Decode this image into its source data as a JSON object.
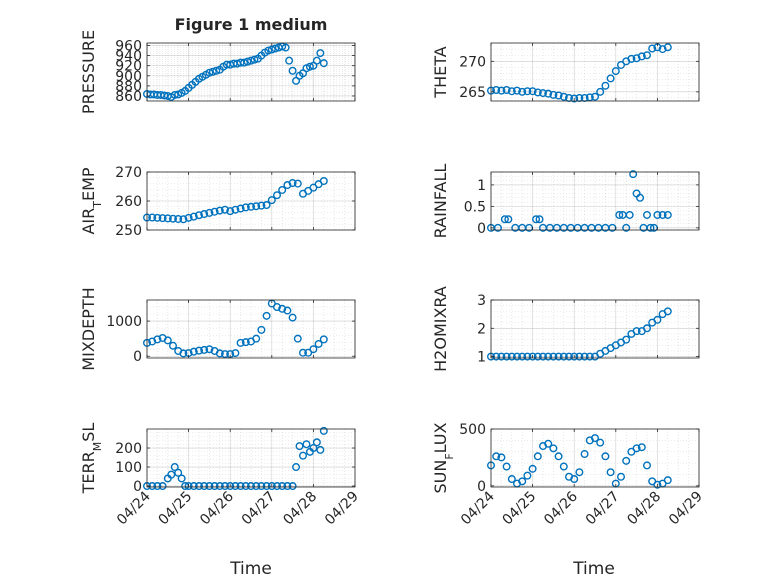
{
  "figure_title": "Figure 1 medium",
  "xlabel": "Time",
  "colors": {
    "marker": "#0072BD",
    "axis": "#262626",
    "grid": "#b0b0b0"
  },
  "chart_data": [
    {
      "type": "scatter",
      "ylabel": "PRESSURE",
      "xlim": [
        "04/24",
        "04/29"
      ],
      "ylim": [
        850,
        965
      ],
      "yticks": [
        "860",
        "880",
        "900",
        "920",
        "940",
        "960"
      ],
      "xticks": [
        "04/24",
        "04/25",
        "04/26",
        "04/27",
        "04/28",
        "04/29"
      ],
      "grid": true,
      "x": [
        "04/24 00:00",
        "04/24 02:00",
        "04/24 04:00",
        "04/24 06:00",
        "04/24 08:00",
        "04/24 10:00",
        "04/24 12:00",
        "04/24 14:00",
        "04/24 16:00",
        "04/24 18:00",
        "04/24 20:00",
        "04/24 22:00",
        "04/25 00:00",
        "04/25 02:00",
        "04/25 04:00",
        "04/25 06:00",
        "04/25 08:00",
        "04/25 10:00",
        "04/25 12:00",
        "04/25 14:00",
        "04/25 16:00",
        "04/25 18:00",
        "04/25 20:00",
        "04/25 22:00",
        "04/26 00:00",
        "04/26 02:00",
        "04/26 04:00",
        "04/26 06:00",
        "04/26 08:00",
        "04/26 10:00",
        "04/26 12:00",
        "04/26 14:00",
        "04/26 16:00",
        "04/26 18:00",
        "04/26 20:00",
        "04/26 22:00",
        "04/27 00:00",
        "04/27 02:00",
        "04/27 04:00",
        "04/27 06:00",
        "04/27 08:00",
        "04/27 10:00",
        "04/27 12:00",
        "04/27 14:00",
        "04/27 16:00",
        "04/27 18:00",
        "04/27 20:00",
        "04/27 22:00",
        "04/28 00:00",
        "04/28 02:00",
        "04/28 04:00",
        "04/28 06:00"
      ],
      "y": [
        864,
        863,
        863,
        862,
        862,
        861,
        860,
        858,
        862,
        863,
        866,
        870,
        876,
        882,
        888,
        894,
        898,
        902,
        906,
        908,
        910,
        912,
        918,
        922,
        922,
        924,
        924,
        926,
        926,
        928,
        930,
        932,
        934,
        940,
        946,
        950,
        952,
        954,
        956,
        958,
        956,
        930,
        910,
        890,
        900,
        905,
        915,
        918,
        920,
        930,
        945,
        925
      ]
    },
    {
      "type": "scatter",
      "ylabel": "THETA",
      "xlim": [
        "04/24",
        "04/29"
      ],
      "ylim": [
        263.5,
        273
      ],
      "yticks": [
        "265",
        "270"
      ],
      "xticks": [
        "04/24",
        "04/25",
        "04/26",
        "04/27",
        "04/28",
        "04/29"
      ],
      "grid": true,
      "x": [
        "04/24 00:00",
        "04/24 03:00",
        "04/24 06:00",
        "04/24 09:00",
        "04/24 12:00",
        "04/24 15:00",
        "04/24 18:00",
        "04/24 21:00",
        "04/25 00:00",
        "04/25 03:00",
        "04/25 06:00",
        "04/25 09:00",
        "04/25 12:00",
        "04/25 15:00",
        "04/25 18:00",
        "04/25 21:00",
        "04/26 00:00",
        "04/26 03:00",
        "04/26 06:00",
        "04/26 09:00",
        "04/26 12:00",
        "04/26 15:00",
        "04/26 18:00",
        "04/26 21:00",
        "04/27 00:00",
        "04/27 03:00",
        "04/27 06:00",
        "04/27 09:00",
        "04/27 12:00",
        "04/27 15:00",
        "04/27 18:00",
        "04/27 21:00",
        "04/28 00:00",
        "04/28 03:00",
        "04/28 06:00"
      ],
      "y": [
        265.2,
        265.3,
        265.2,
        265.3,
        265.1,
        265.2,
        265.0,
        265.1,
        265.1,
        264.9,
        264.8,
        264.7,
        264.5,
        264.4,
        264.2,
        264.0,
        263.9,
        264.0,
        264.0,
        264.1,
        264.2,
        265.0,
        266.0,
        267.2,
        268.4,
        269.4,
        270.0,
        270.4,
        270.5,
        270.8,
        271.0,
        272.1,
        272.3,
        272.0,
        272.3
      ]
    },
    {
      "type": "scatter",
      "ylabel": "AIR_TEMP",
      "xlim": [
        "04/24",
        "04/29"
      ],
      "ylim": [
        250,
        270
      ],
      "yticks": [
        "250",
        "260",
        "270"
      ],
      "xticks": [
        "04/24",
        "04/25",
        "04/26",
        "04/27",
        "04/28",
        "04/29"
      ],
      "grid": true,
      "x": [
        "04/24 00:00",
        "04/24 03:00",
        "04/24 06:00",
        "04/24 09:00",
        "04/24 12:00",
        "04/24 15:00",
        "04/24 18:00",
        "04/24 21:00",
        "04/25 00:00",
        "04/25 03:00",
        "04/25 06:00",
        "04/25 09:00",
        "04/25 12:00",
        "04/25 15:00",
        "04/25 18:00",
        "04/25 21:00",
        "04/26 00:00",
        "04/26 03:00",
        "04/26 06:00",
        "04/26 09:00",
        "04/26 12:00",
        "04/26 15:00",
        "04/26 18:00",
        "04/26 21:00",
        "04/27 00:00",
        "04/27 03:00",
        "04/27 06:00",
        "04/27 09:00",
        "04/27 12:00",
        "04/27 15:00",
        "04/27 18:00",
        "04/27 21:00",
        "04/28 00:00",
        "04/28 03:00",
        "04/28 06:00"
      ],
      "y": [
        254.3,
        254.3,
        254.2,
        254.1,
        254.0,
        253.9,
        253.8,
        253.7,
        254.2,
        254.6,
        255.1,
        255.5,
        255.9,
        256.3,
        256.7,
        257.0,
        256.5,
        257.0,
        257.4,
        257.8,
        258.0,
        258.2,
        258.4,
        258.6,
        260.3,
        262.0,
        263.8,
        265.5,
        266.2,
        266.0,
        262.5,
        263.5,
        264.6,
        265.8,
        266.9
      ]
    },
    {
      "type": "scatter",
      "ylabel": "RAINFALL",
      "xlim": [
        "04/24",
        "04/29"
      ],
      "ylim": [
        -0.05,
        1.3
      ],
      "yticks": [
        "0",
        "0.5",
        "1"
      ],
      "xticks": [
        "04/24",
        "04/25",
        "04/26",
        "04/27",
        "04/28",
        "04/29"
      ],
      "grid": true,
      "x": [
        "04/24 00:00",
        "04/24 04:00",
        "04/24 08:00",
        "04/24 10:00",
        "04/24 14:00",
        "04/24 18:00",
        "04/24 22:00",
        "04/25 02:00",
        "04/25 04:00",
        "04/25 06:00",
        "04/25 10:00",
        "04/25 14:00",
        "04/25 18:00",
        "04/25 22:00",
        "04/26 02:00",
        "04/26 06:00",
        "04/26 10:00",
        "04/26 14:00",
        "04/26 18:00",
        "04/26 22:00",
        "04/27 02:00",
        "04/27 04:00",
        "04/27 06:00",
        "04/27 08:00",
        "04/27 10:00",
        "04/27 12:00",
        "04/27 14:00",
        "04/27 16:00",
        "04/27 18:00",
        "04/27 20:00",
        "04/27 22:00",
        "04/28 00:00",
        "04/28 03:00",
        "04/28 06:00"
      ],
      "y": [
        0,
        0,
        0.2,
        0.2,
        0,
        0,
        0,
        0.2,
        0.2,
        0,
        0,
        0,
        0,
        0,
        0,
        0,
        0,
        0,
        0,
        0,
        0.3,
        0.3,
        0,
        0.3,
        1.25,
        0.8,
        0.7,
        0,
        0.3,
        0,
        0,
        0.3,
        0.3,
        0.3
      ]
    },
    {
      "type": "scatter",
      "ylabel": "MIXDEPTH",
      "xlim": [
        "04/24",
        "04/29"
      ],
      "ylim": [
        -50,
        1600
      ],
      "yticks": [
        "0",
        "1000"
      ],
      "xticks": [
        "04/24",
        "04/25",
        "04/26",
        "04/27",
        "04/28",
        "04/29"
      ],
      "grid": true,
      "x": [
        "04/24 00:00",
        "04/24 03:00",
        "04/24 06:00",
        "04/24 09:00",
        "04/24 12:00",
        "04/24 15:00",
        "04/24 18:00",
        "04/24 21:00",
        "04/25 00:00",
        "04/25 03:00",
        "04/25 06:00",
        "04/25 09:00",
        "04/25 12:00",
        "04/25 15:00",
        "04/25 18:00",
        "04/25 21:00",
        "04/26 00:00",
        "04/26 03:00",
        "04/26 06:00",
        "04/26 09:00",
        "04/26 12:00",
        "04/26 15:00",
        "04/26 18:00",
        "04/26 21:00",
        "04/27 00:00",
        "04/27 03:00",
        "04/27 06:00",
        "04/27 09:00",
        "04/27 12:00",
        "04/27 15:00",
        "04/27 18:00",
        "04/27 21:00",
        "04/28 00:00",
        "04/28 03:00",
        "04/28 06:00"
      ],
      "y": [
        380,
        420,
        480,
        520,
        450,
        300,
        150,
        80,
        90,
        130,
        160,
        180,
        200,
        150,
        80,
        60,
        60,
        90,
        380,
        400,
        420,
        500,
        750,
        1150,
        1500,
        1400,
        1350,
        1300,
        1100,
        500,
        100,
        100,
        200,
        350,
        480
      ]
    },
    {
      "type": "scatter",
      "ylabel": "H2OMIXRA",
      "xlim": [
        "04/24",
        "04/29"
      ],
      "ylim": [
        0.95,
        3
      ],
      "yticks": [
        "1",
        "2",
        "3"
      ],
      "xticks": [
        "04/24",
        "04/25",
        "04/26",
        "04/27",
        "04/28",
        "04/29"
      ],
      "grid": true,
      "x": [
        "04/24 00:00",
        "04/24 03:00",
        "04/24 06:00",
        "04/24 09:00",
        "04/24 12:00",
        "04/24 15:00",
        "04/24 18:00",
        "04/24 21:00",
        "04/25 00:00",
        "04/25 03:00",
        "04/25 06:00",
        "04/25 09:00",
        "04/25 12:00",
        "04/25 15:00",
        "04/25 18:00",
        "04/25 21:00",
        "04/26 00:00",
        "04/26 03:00",
        "04/26 06:00",
        "04/26 09:00",
        "04/26 12:00",
        "04/26 15:00",
        "04/26 18:00",
        "04/26 21:00",
        "04/27 00:00",
        "04/27 03:00",
        "04/27 06:00",
        "04/27 09:00",
        "04/27 12:00",
        "04/27 15:00",
        "04/27 18:00",
        "04/27 21:00",
        "04/28 00:00",
        "04/28 03:00",
        "04/28 06:00"
      ],
      "y": [
        1,
        1,
        1,
        1,
        1,
        1,
        1,
        1,
        1,
        1,
        1,
        1,
        1,
        1,
        1,
        1,
        1,
        1,
        1,
        1,
        1,
        1.1,
        1.2,
        1.3,
        1.4,
        1.5,
        1.6,
        1.8,
        1.9,
        1.9,
        2.0,
        2.2,
        2.3,
        2.5,
        2.6
      ]
    },
    {
      "type": "scatter",
      "ylabel": "TERR_MSL",
      "xlim": [
        "04/24",
        "04/29"
      ],
      "ylim": [
        -5,
        300
      ],
      "yticks": [
        "0",
        "100",
        "200"
      ],
      "xticks": [
        "04/24",
        "04/25",
        "04/26",
        "04/27",
        "04/28",
        "04/29"
      ],
      "grid": true,
      "x": [
        "04/24 00:00",
        "04/24 03:00",
        "04/24 06:00",
        "04/24 09:00",
        "04/24 12:00",
        "04/24 14:00",
        "04/24 16:00",
        "04/24 18:00",
        "04/24 20:00",
        "04/24 22:00",
        "04/25 00:00",
        "04/25 03:00",
        "04/25 06:00",
        "04/25 09:00",
        "04/25 12:00",
        "04/25 15:00",
        "04/25 18:00",
        "04/25 21:00",
        "04/26 00:00",
        "04/26 03:00",
        "04/26 06:00",
        "04/26 09:00",
        "04/26 12:00",
        "04/26 15:00",
        "04/26 18:00",
        "04/26 21:00",
        "04/27 00:00",
        "04/27 03:00",
        "04/27 06:00",
        "04/27 09:00",
        "04/27 12:00",
        "04/27 14:00",
        "04/27 16:00",
        "04/27 18:00",
        "04/27 20:00",
        "04/27 22:00",
        "04/28 00:00",
        "04/28 02:00",
        "04/28 04:00",
        "04/28 06:00"
      ],
      "y": [
        0,
        0,
        0,
        0,
        40,
        60,
        100,
        70,
        40,
        0,
        0,
        0,
        0,
        0,
        0,
        0,
        0,
        0,
        0,
        0,
        0,
        0,
        0,
        0,
        0,
        0,
        0,
        0,
        0,
        0,
        0,
        100,
        210,
        160,
        220,
        180,
        200,
        230,
        190,
        290
      ]
    },
    {
      "type": "scatter",
      "ylabel": "SUN_FLUX",
      "xlim": [
        "04/24",
        "04/29"
      ],
      "ylim": [
        -10,
        500
      ],
      "yticks": [
        "0",
        "500"
      ],
      "xticks": [
        "04/24",
        "04/25",
        "04/26",
        "04/27",
        "04/28",
        "04/29"
      ],
      "grid": true,
      "x": [
        "04/24 00:00",
        "04/24 03:00",
        "04/24 06:00",
        "04/24 09:00",
        "04/24 12:00",
        "04/24 15:00",
        "04/24 18:00",
        "04/24 21:00",
        "04/25 00:00",
        "04/25 03:00",
        "04/25 06:00",
        "04/25 09:00",
        "04/25 12:00",
        "04/25 15:00",
        "04/25 18:00",
        "04/25 21:00",
        "04/26 00:00",
        "04/26 03:00",
        "04/26 06:00",
        "04/26 09:00",
        "04/26 12:00",
        "04/26 15:00",
        "04/26 18:00",
        "04/26 21:00",
        "04/27 00:00",
        "04/27 03:00",
        "04/27 06:00",
        "04/27 09:00",
        "04/27 12:00",
        "04/27 15:00",
        "04/27 18:00",
        "04/27 21:00",
        "04/28 00:00",
        "04/28 03:00",
        "04/28 06:00"
      ],
      "y": [
        180,
        260,
        250,
        170,
        60,
        20,
        40,
        90,
        150,
        260,
        350,
        370,
        330,
        260,
        170,
        80,
        60,
        120,
        280,
        400,
        420,
        380,
        260,
        120,
        20,
        80,
        220,
        300,
        330,
        340,
        180,
        40,
        10,
        20,
        50
      ]
    }
  ]
}
